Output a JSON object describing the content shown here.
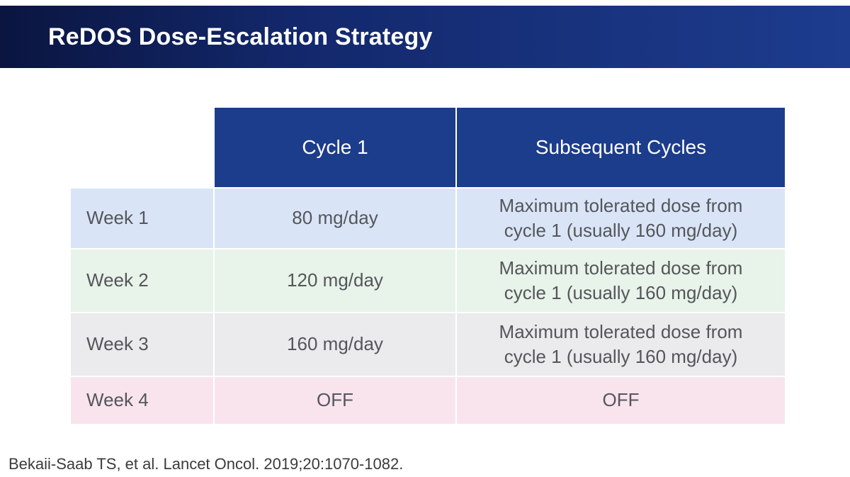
{
  "slide": {
    "title": "ReDOS Dose-Escalation Strategy",
    "citation": "Bekaii-Saab TS, et al. Lancet Oncol. 2019;20:1070-1082."
  },
  "table": {
    "columns": [
      "",
      "Cycle 1",
      "Subsequent Cycles"
    ],
    "rows": [
      {
        "label": "Week 1",
        "cycle1": "80 mg/day",
        "subsequent": "Maximum tolerated dose from cycle 1 (usually 160 mg/day)"
      },
      {
        "label": "Week 2",
        "cycle1": "120 mg/day",
        "subsequent": "Maximum tolerated dose from cycle 1 (usually 160 mg/day)"
      },
      {
        "label": "Week 3",
        "cycle1": "160 mg/day",
        "subsequent": "Maximum tolerated dose from cycle 1 (usually 160 mg/day)"
      },
      {
        "label": "Week 4",
        "cycle1": "OFF",
        "subsequent": "OFF"
      }
    ]
  },
  "colors": {
    "banner_gradient_start": "#0a1540",
    "banner_gradient_end": "#1d3c8e",
    "table_header_bg": "#1c3c8c",
    "row_week1_bg": "#d9e5f7",
    "row_week2_bg": "#e8f3ea",
    "row_week3_bg": "#ebebee",
    "row_week4_bg": "#f9e4ed",
    "header_text": "#ffffff",
    "body_text": "#55565a"
  }
}
